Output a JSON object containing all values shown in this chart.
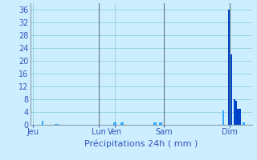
{
  "xlabel": "Précipitations 24h ( mm )",
  "background_color": "#cceeff",
  "bar_color_dark": "#0044cc",
  "bar_color_light": "#33aaff",
  "ylim": [
    0,
    38
  ],
  "yticks": [
    0,
    4,
    8,
    12,
    16,
    20,
    24,
    28,
    32,
    36
  ],
  "grid_color": "#88cccc",
  "vline_color": "#667788",
  "day_labels": [
    "Jeu",
    "Lun",
    "Ven",
    "Sam",
    "Dim"
  ],
  "day_tick_positions": [
    0,
    36,
    45,
    72,
    108
  ],
  "xlim": [
    -1,
    120
  ],
  "values": [
    0,
    0,
    0,
    0,
    0,
    1.2,
    0,
    0,
    0,
    0,
    0,
    0,
    0.3,
    0.3,
    0,
    0,
    0,
    0,
    0,
    0,
    0,
    0,
    0,
    0,
    0,
    0,
    0,
    0,
    0,
    0,
    0,
    0,
    0,
    0,
    0,
    0,
    0,
    0,
    0,
    0,
    0,
    0,
    0,
    0,
    0.7,
    0.7,
    0,
    0,
    0.8,
    0.8,
    0,
    0,
    0,
    0,
    0,
    0,
    0,
    0,
    0,
    0,
    0,
    0,
    0,
    0,
    0,
    0,
    0.7,
    0.7,
    0,
    0.7,
    0.7,
    0,
    0,
    0,
    0,
    0,
    0,
    0,
    0,
    0,
    0,
    0,
    0,
    0,
    0,
    0,
    0,
    0,
    0,
    0,
    0,
    0,
    0,
    0,
    0,
    0,
    0,
    0,
    0,
    0,
    0,
    0,
    0,
    0,
    4.5,
    0,
    0,
    36,
    22,
    0,
    8,
    7.5,
    5,
    5,
    0,
    0.8,
    0,
    0,
    0,
    0
  ],
  "bar_colors": [
    "l",
    "l",
    "l",
    "l",
    "l",
    "l",
    "l",
    "l",
    "l",
    "l",
    "l",
    "l",
    "l",
    "l",
    "l",
    "l",
    "l",
    "l",
    "l",
    "l",
    "l",
    "l",
    "l",
    "l",
    "l",
    "l",
    "l",
    "l",
    "l",
    "l",
    "l",
    "l",
    "l",
    "l",
    "l",
    "l",
    "l",
    "l",
    "l",
    "l",
    "l",
    "l",
    "l",
    "l",
    "l",
    "l",
    "l",
    "l",
    "l",
    "l",
    "l",
    "l",
    "l",
    "l",
    "l",
    "l",
    "l",
    "l",
    "l",
    "l",
    "l",
    "l",
    "l",
    "l",
    "l",
    "l",
    "l",
    "l",
    "l",
    "l",
    "l",
    "l",
    "l",
    "l",
    "l",
    "l",
    "l",
    "l",
    "l",
    "l",
    "l",
    "l",
    "l",
    "l",
    "l",
    "l",
    "l",
    "l",
    "l",
    "l",
    "l",
    "l",
    "l",
    "l",
    "l",
    "l",
    "l",
    "l",
    "l",
    "l",
    "l",
    "l",
    "l",
    "l",
    "l",
    "l",
    "l",
    "d",
    "d",
    "l",
    "d",
    "d",
    "d",
    "d",
    "l",
    "l",
    "l",
    "l",
    "l",
    "l"
  ]
}
